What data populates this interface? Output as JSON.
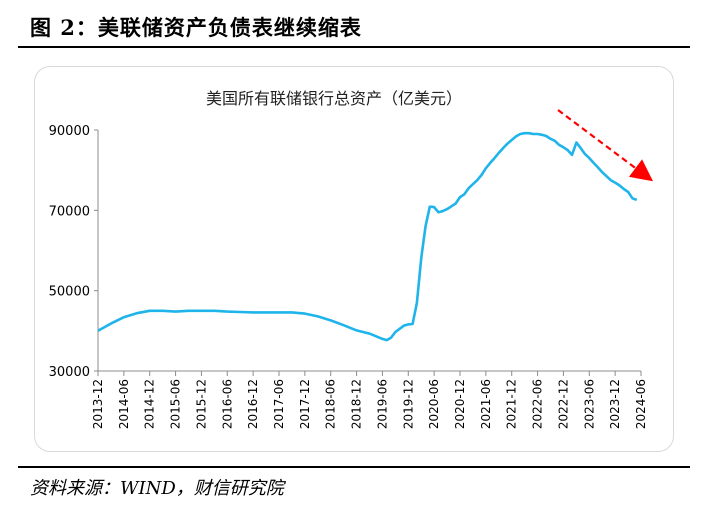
{
  "figure": {
    "title": "图 2：美联储资产负债表继续缩表",
    "source": "资料来源：WIND，财信研究院"
  },
  "colors": {
    "line": "#1fb4ea",
    "arrow": "#ff0000",
    "axis": "#8c8c8c"
  },
  "chart_data": {
    "type": "line",
    "title": "美国所有联储银行总资产（亿美元）",
    "xlabel": "",
    "ylabel": "",
    "ylim": [
      30000,
      90000
    ],
    "yticks": [
      "30000",
      "50000",
      "70000",
      "90000"
    ],
    "xticks": [
      "2013-12",
      "2014-06",
      "2014-12",
      "2015-06",
      "2015-12",
      "2016-06",
      "2016-12",
      "2017-06",
      "2017-12",
      "2018-06",
      "2018-12",
      "2019-06",
      "2019-12",
      "2020-06",
      "2020-12",
      "2021-06",
      "2021-12",
      "2022-06",
      "2022-12",
      "2023-06",
      "2023-12",
      "2024-06"
    ],
    "annotation": "red dashed arrow pointing down-right (declining trend)",
    "series": [
      {
        "values": [
          [
            0,
            40000
          ],
          [
            3,
            41800
          ],
          [
            6,
            43400
          ],
          [
            9,
            44400
          ],
          [
            12,
            45000
          ],
          [
            15,
            45000
          ],
          [
            18,
            44800
          ],
          [
            21,
            45000
          ],
          [
            24,
            45000
          ],
          [
            27,
            45000
          ],
          [
            30,
            44800
          ],
          [
            33,
            44700
          ],
          [
            36,
            44600
          ],
          [
            39,
            44600
          ],
          [
            42,
            44600
          ],
          [
            45,
            44600
          ],
          [
            48,
            44300
          ],
          [
            51,
            43600
          ],
          [
            54,
            42600
          ],
          [
            57,
            41400
          ],
          [
            60,
            40100
          ],
          [
            63,
            39300
          ],
          [
            66,
            38000
          ],
          [
            67,
            37700
          ],
          [
            68,
            38300
          ],
          [
            69,
            39700
          ],
          [
            70,
            40500
          ],
          [
            71,
            41300
          ],
          [
            72,
            41600
          ],
          [
            73,
            41700
          ],
          [
            74,
            47000
          ],
          [
            75,
            58000
          ],
          [
            76,
            66000
          ],
          [
            77,
            70900
          ],
          [
            78,
            70800
          ],
          [
            79,
            69500
          ],
          [
            80,
            69800
          ],
          [
            81,
            70300
          ],
          [
            82,
            71000
          ],
          [
            83,
            71700
          ],
          [
            84,
            73300
          ],
          [
            85,
            74000
          ],
          [
            86,
            75500
          ],
          [
            87,
            76500
          ],
          [
            88,
            77500
          ],
          [
            89,
            78800
          ],
          [
            90,
            80500
          ],
          [
            91,
            81800
          ],
          [
            92,
            83000
          ],
          [
            93,
            84300
          ],
          [
            94,
            85500
          ],
          [
            95,
            86600
          ],
          [
            96,
            87500
          ],
          [
            97,
            88400
          ],
          [
            98,
            89000
          ],
          [
            99,
            89200
          ],
          [
            100,
            89200
          ],
          [
            101,
            89000
          ],
          [
            102,
            89000
          ],
          [
            103,
            88800
          ],
          [
            104,
            88500
          ],
          [
            105,
            87800
          ],
          [
            106,
            87300
          ],
          [
            107,
            86300
          ],
          [
            108,
            85700
          ],
          [
            109,
            85000
          ],
          [
            110,
            83800
          ],
          [
            111,
            86900
          ],
          [
            112,
            85500
          ],
          [
            113,
            84000
          ],
          [
            114,
            83000
          ],
          [
            115,
            81800
          ],
          [
            116,
            80700
          ],
          [
            117,
            79500
          ],
          [
            118,
            78500
          ],
          [
            119,
            77500
          ],
          [
            120,
            76900
          ],
          [
            121,
            76200
          ],
          [
            122,
            75300
          ],
          [
            123,
            74600
          ],
          [
            124,
            73000
          ],
          [
            125,
            72600
          ]
        ]
      }
    ]
  }
}
